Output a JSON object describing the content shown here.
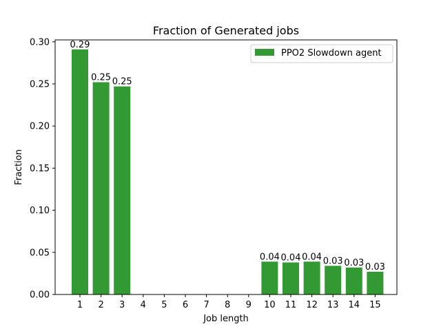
{
  "chart_data": {
    "type": "bar",
    "title": "Fraction of Generated jobs",
    "xlabel": "Job length",
    "ylabel": "Fraction",
    "categories": [
      "1",
      "2",
      "3",
      "4",
      "5",
      "6",
      "7",
      "8",
      "9",
      "10",
      "11",
      "12",
      "13",
      "14",
      "15"
    ],
    "series": [
      {
        "name": "PPO2 Slowdown agent",
        "color": "#339933",
        "values": [
          0.291,
          0.252,
          0.247,
          0,
          0,
          0,
          0,
          0,
          0,
          0.039,
          0.038,
          0.039,
          0.034,
          0.032,
          0.027
        ],
        "labels": [
          "0.29",
          "0.25",
          "0.25",
          "",
          "",
          "",
          "",
          "",
          "",
          "0.04",
          "0.04",
          "0.04",
          "0.03",
          "0.03",
          "0.03"
        ]
      }
    ],
    "ylim": [
      0,
      0.30225
    ],
    "yticks": [
      "0.00",
      "0.05",
      "0.10",
      "0.15",
      "0.20",
      "0.25",
      "0.30"
    ],
    "grid": false,
    "legend_position": "top-right"
  }
}
